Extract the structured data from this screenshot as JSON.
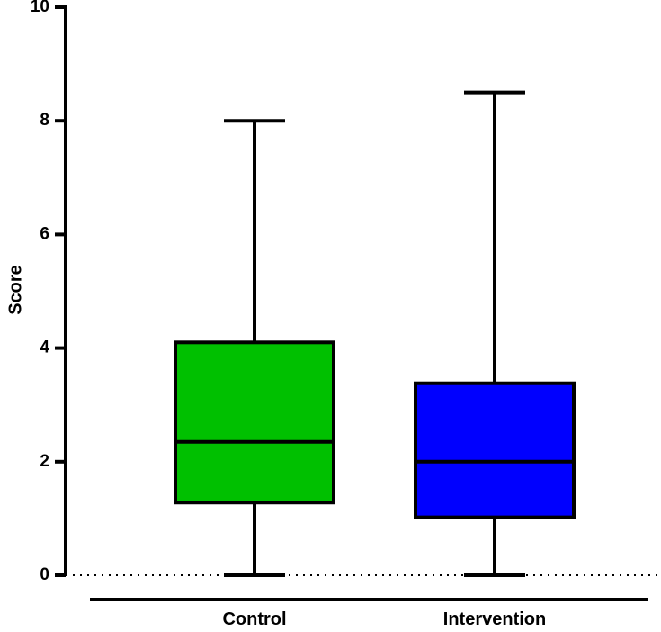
{
  "chart_data": {
    "type": "boxplot",
    "title": "",
    "xlabel": "",
    "ylabel": "Score",
    "ylim": [
      0,
      10
    ],
    "yticks": [
      "0",
      "2",
      "4",
      "6",
      "8",
      "10"
    ],
    "reference_line": {
      "y": 0,
      "style": "dotted"
    },
    "categories": [
      "Control",
      "Intervention"
    ],
    "series": [
      {
        "name": "Control",
        "min": 0,
        "q1": 1.28,
        "median": 2.35,
        "q3": 4.1,
        "max": 8.0,
        "color": "#00c000"
      },
      {
        "name": "Intervention",
        "min": 0,
        "q1": 1.02,
        "median": 2.0,
        "q3": 3.38,
        "max": 8.5,
        "color": "#0000ff"
      }
    ]
  }
}
